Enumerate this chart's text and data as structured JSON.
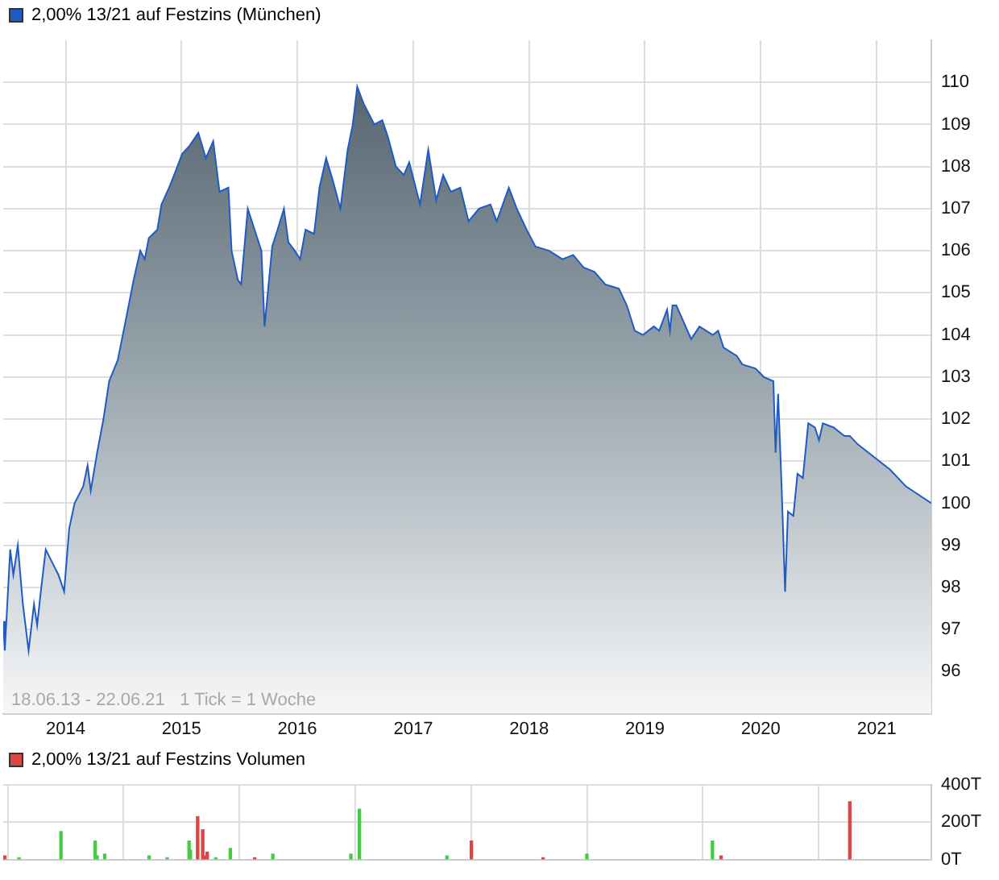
{
  "chart_data": [
    {
      "type": "area",
      "legend": "top left",
      "grid": true,
      "x": [
        "2013-06-18",
        "2013-06-23",
        "2013-07-10",
        "2013-07-20",
        "2013-08-03",
        "2013-08-19",
        "2013-09-06",
        "2013-09-23",
        "2013-10-03",
        "2013-10-13",
        "2013-10-30",
        "2013-11-19",
        "2013-12-09",
        "2013-12-27",
        "2014-01-12",
        "2014-01-29",
        "2014-02-25",
        "2014-03-11",
        "2014-03-21",
        "2014-04-10",
        "2014-04-30",
        "2014-05-18",
        "2014-06-14",
        "2014-07-08",
        "2014-08-03",
        "2014-08-24",
        "2014-09-07",
        "2014-09-20",
        "2014-10-17",
        "2014-10-30",
        "2014-11-23",
        "2014-12-14",
        "2015-01-03",
        "2015-01-27",
        "2015-02-23",
        "2015-03-19",
        "2015-04-11",
        "2015-05-01",
        "2015-05-29",
        "2015-06-08",
        "2015-06-28",
        "2015-07-08",
        "2015-07-29",
        "2015-08-28",
        "2015-09-10",
        "2015-09-20",
        "2015-10-14",
        "2015-10-31",
        "2015-11-20",
        "2015-12-04",
        "2015-12-24",
        "2016-01-10",
        "2016-01-27",
        "2016-02-23",
        "2016-03-11",
        "2016-04-01",
        "2016-04-21",
        "2016-05-16",
        "2016-06-08",
        "2016-06-24",
        "2016-07-08",
        "2016-07-28",
        "2016-08-31",
        "2016-09-25",
        "2016-10-13",
        "2016-11-07",
        "2016-12-02",
        "2016-12-19",
        "2017-01-22",
        "2017-02-17",
        "2017-03-14",
        "2017-04-05",
        "2017-04-29",
        "2017-05-29",
        "2017-06-24",
        "2017-07-27",
        "2017-09-01",
        "2017-09-21",
        "2017-10-29",
        "2017-11-23",
        "2017-12-24",
        "2018-01-21",
        "2018-03-05",
        "2018-04-16",
        "2018-05-20",
        "2018-06-22",
        "2018-07-26",
        "2018-08-29",
        "2018-10-11",
        "2018-11-05",
        "2018-11-30",
        "2018-12-26",
        "2019-01-29",
        "2019-02-15",
        "2019-03-12",
        "2019-03-21",
        "2019-03-29",
        "2019-04-10",
        "2019-05-27",
        "2019-06-22",
        "2019-08-03",
        "2019-08-20",
        "2019-09-06",
        "2019-10-18",
        "2019-11-04",
        "2019-12-16",
        "2020-01-11",
        "2020-02-10",
        "2020-02-17",
        "2020-02-25",
        "2020-03-07",
        "2020-03-18",
        "2020-03-27",
        "2020-04-13",
        "2020-04-26",
        "2020-05-13",
        "2020-05-30",
        "2020-06-20",
        "2020-07-03",
        "2020-07-15",
        "2020-08-18",
        "2020-09-21",
        "2020-10-08",
        "2020-11-02",
        "2020-12-23",
        "2021-02-12",
        "2021-04-03",
        "2021-06-22"
      ],
      "series": [
        {
          "name": "2,00% 13/21 auf Festzins (München)",
          "color": "#1f5bc4",
          "values": [
            97.2,
            96.5,
            98.9,
            98.3,
            99.0,
            97.6,
            96.5,
            97.6,
            97.1,
            97.8,
            98.9,
            98.6,
            98.3,
            97.9,
            99.4,
            100.0,
            100.4,
            100.9,
            100.3,
            101.2,
            102.0,
            102.9,
            103.4,
            104.3,
            105.3,
            106.0,
            105.8,
            106.3,
            106.5,
            107.1,
            107.5,
            107.9,
            108.3,
            108.5,
            108.8,
            108.2,
            108.6,
            107.4,
            107.5,
            106.0,
            105.3,
            105.2,
            107.0,
            106.3,
            106.0,
            104.2,
            106.1,
            106.5,
            107.0,
            106.2,
            106.0,
            105.8,
            106.5,
            106.4,
            107.5,
            108.2,
            107.7,
            107.0,
            108.4,
            109.0,
            109.9,
            109.5,
            109.0,
            109.1,
            108.7,
            108.0,
            107.8,
            108.1,
            107.1,
            108.4,
            107.2,
            107.8,
            107.4,
            107.5,
            106.7,
            107.0,
            107.1,
            106.7,
            107.5,
            107.0,
            106.5,
            106.1,
            106.0,
            105.8,
            105.9,
            105.6,
            105.5,
            105.2,
            105.1,
            104.7,
            104.1,
            104.0,
            104.2,
            104.1,
            104.6,
            104.1,
            104.7,
            104.7,
            103.9,
            104.2,
            104.0,
            104.1,
            103.7,
            103.5,
            103.3,
            103.2,
            103.0,
            102.9,
            101.2,
            102.6,
            100.4,
            97.9,
            99.8,
            99.7,
            100.7,
            100.6,
            101.9,
            101.8,
            101.5,
            101.9,
            101.8,
            101.6,
            101.6,
            101.4,
            101.1,
            100.8,
            100.4,
            100.0
          ]
        }
      ],
      "xlim": [
        "2013-06-18",
        "2021-06-22"
      ],
      "xticks": [
        "2014",
        "2015",
        "2016",
        "2017",
        "2018",
        "2019",
        "2020",
        "2021"
      ],
      "ylim": [
        95,
        111
      ],
      "yticks": [
        96,
        97,
        98,
        99,
        100,
        101,
        102,
        103,
        104,
        105,
        106,
        107,
        108,
        109,
        110
      ],
      "annotations": [
        "18.06.13 - 22.06.21   1 Tick = 1 Woche"
      ]
    },
    {
      "type": "bar",
      "legend": "top left",
      "grid": true,
      "tick_labels": "y",
      "x": [
        "2013-06-23",
        "2013-08-07",
        "2013-12-17",
        "2014-04-04",
        "2014-04-10",
        "2014-05-04",
        "2014-09-21",
        "2014-11-17",
        "2015-01-25",
        "2015-01-29",
        "2015-02-21",
        "2015-03-09",
        "2015-03-15",
        "2015-03-23",
        "2015-04-19",
        "2015-06-04",
        "2015-08-20",
        "2015-10-16",
        "2016-06-18",
        "2016-07-15",
        "2017-04-17",
        "2017-07-03",
        "2018-02-14",
        "2018-07-02",
        "2019-08-02",
        "2019-08-29",
        "2020-10-08"
      ],
      "series": [
        {
          "name": "2,00% 13/21 auf Festzins Volumen",
          "color": "#dd4444",
          "values": [
            20,
            10,
            150,
            100,
            20,
            30,
            20,
            10,
            100,
            50,
            230,
            160,
            20,
            40,
            10,
            60,
            10,
            30,
            30,
            270,
            20,
            100,
            10,
            30,
            100,
            20,
            310
          ],
          "colors": [
            "#dd4444",
            "#44cc44",
            "#44cc44",
            "#44cc44",
            "#44cc44",
            "#44cc44",
            "#44cc44",
            "#44cc44",
            "#44cc44",
            "#44cc44",
            "#dd4444",
            "#dd4444",
            "#dd4444",
            "#dd4444",
            "#44cc44",
            "#44cc44",
            "#dd4444",
            "#44cc44",
            "#44cc44",
            "#44cc44",
            "#44cc44",
            "#dd4444",
            "#dd4444",
            "#44cc44",
            "#44cc44",
            "#dd4444",
            "#dd4444"
          ]
        }
      ],
      "xlim": [
        "2013-06-18",
        "2021-06-22"
      ],
      "xticks": [
        "2014",
        "2015",
        "2016",
        "2017",
        "2018",
        "2019",
        "2020",
        "2021"
      ],
      "ylim": [
        0,
        400
      ],
      "yticks": [
        {
          "value": 0,
          "label": "0T"
        },
        {
          "value": 200,
          "label": "200T"
        },
        {
          "value": 400,
          "label": "400T"
        }
      ]
    }
  ]
}
